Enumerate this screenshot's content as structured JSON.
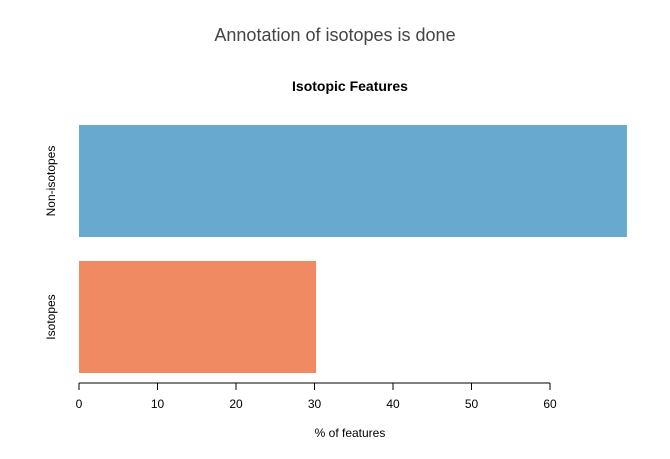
{
  "page": {
    "title": "Annotation of isotopes is done"
  },
  "chart_data": {
    "type": "bar",
    "orientation": "horizontal",
    "title": "Isotopic Features",
    "xlabel": "% of features",
    "ylabel": "",
    "categories": [
      "Non-isotopes",
      "Isotopes"
    ],
    "values": [
      69.8,
      30.2
    ],
    "colors": [
      "#67a9cf",
      "#ef8a62"
    ],
    "xlim": [
      0,
      70
    ],
    "xticks": [
      0,
      10,
      20,
      30,
      40,
      50,
      60
    ],
    "grid": false,
    "legend": "none"
  }
}
